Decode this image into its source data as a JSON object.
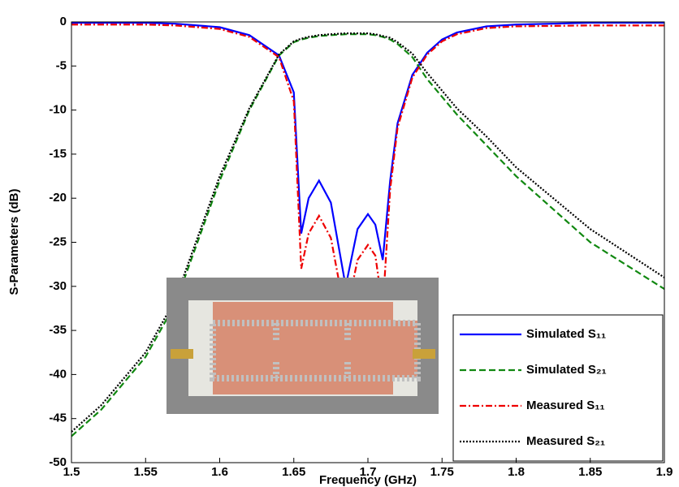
{
  "chart_data": {
    "type": "line",
    "xlabel": "Frequency (GHz)",
    "ylabel": "S-Parameters (dB)",
    "x": [
      1.5,
      1.52,
      1.55,
      1.57,
      1.6,
      1.62,
      1.64,
      1.65,
      1.655,
      1.66,
      1.667,
      1.675,
      1.685,
      1.693,
      1.7,
      1.705,
      1.71,
      1.715,
      1.72,
      1.73,
      1.74,
      1.75,
      1.76,
      1.78,
      1.8,
      1.85,
      1.9
    ],
    "series": [
      {
        "name": "Simulated S₁₁",
        "color": "#0000ff",
        "style": "solid",
        "values": [
          -0.1,
          -0.1,
          -0.1,
          -0.2,
          -0.6,
          -1.5,
          -3.8,
          -8,
          -24,
          -20,
          -18,
          -20.5,
          -30,
          -23.5,
          -21.8,
          -23,
          -27,
          -18,
          -11.5,
          -6,
          -3.5,
          -2,
          -1.2,
          -0.5,
          -0.3,
          -0.1,
          -0.1
        ]
      },
      {
        "name": "Simulated S₂₁",
        "color": "#118811",
        "style": "dashed",
        "values": [
          -47,
          -44,
          -38,
          -32,
          -18,
          -10,
          -3.8,
          -2.3,
          -2,
          -1.8,
          -1.6,
          -1.5,
          -1.4,
          -1.4,
          -1.4,
          -1.5,
          -1.7,
          -2,
          -2.5,
          -4,
          -6.5,
          -8.5,
          -10.5,
          -14,
          -17.5,
          -25,
          -30.3
        ]
      },
      {
        "name": "Measured S₁₁",
        "color": "#ee0000",
        "style": "dashdot",
        "values": [
          -0.3,
          -0.3,
          -0.3,
          -0.4,
          -0.8,
          -1.7,
          -4,
          -9,
          -28,
          -24,
          -22,
          -24.5,
          -33.5,
          -27,
          -25.3,
          -26.5,
          -32.5,
          -19,
          -12,
          -6.3,
          -3.7,
          -2.2,
          -1.4,
          -0.7,
          -0.5,
          -0.4,
          -0.4
        ]
      },
      {
        "name": "Measured S₂₁",
        "color": "#000000",
        "style": "dotted",
        "values": [
          -46.5,
          -43.5,
          -37.5,
          -31.5,
          -17.5,
          -9.8,
          -3.7,
          -2.2,
          -1.9,
          -1.7,
          -1.5,
          -1.4,
          -1.3,
          -1.3,
          -1.3,
          -1.4,
          -1.6,
          -1.8,
          -2.3,
          -3.6,
          -5.8,
          -7.8,
          -9.8,
          -13,
          -16.5,
          -23.5,
          -29
        ]
      }
    ],
    "xlim": [
      1.5,
      1.9
    ],
    "xticks": [
      1.5,
      1.55,
      1.6,
      1.65,
      1.7,
      1.75,
      1.8,
      1.85,
      1.9
    ],
    "ylim": [
      -50,
      0
    ],
    "yticks": [
      0,
      -5,
      -10,
      -15,
      -20,
      -25,
      -30,
      -35,
      -40,
      -45,
      -50
    ],
    "grid": false,
    "legend": "lower right"
  }
}
